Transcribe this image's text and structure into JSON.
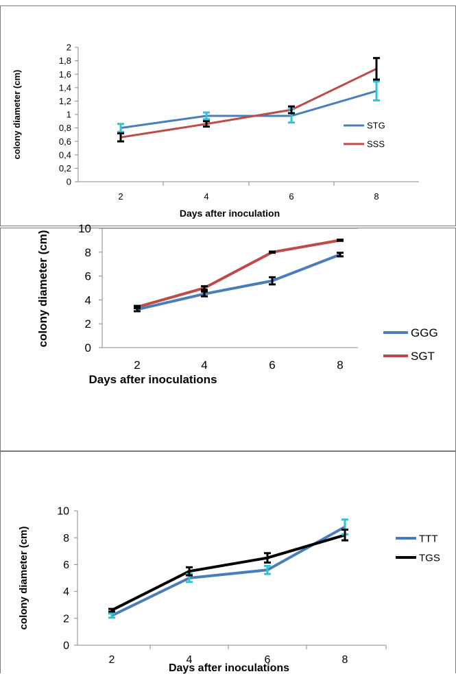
{
  "chart_data": [
    {
      "type": "line",
      "xlabel": "Days after inoculation",
      "ylabel": "colony diameter (cm)",
      "ylim": [
        0,
        2
      ],
      "yticks": [
        "0",
        "0,2",
        "0,4",
        "0,6",
        "0,8",
        "1",
        "1,2",
        "1,4",
        "1,6",
        "1,8",
        "2"
      ],
      "categories": [
        "2",
        "4",
        "6",
        "8"
      ],
      "grid": false,
      "legend_position": "right",
      "series": [
        {
          "name": "STG",
          "color": "#4a7ebb",
          "error_color": "#2fc3d6",
          "values": [
            0.8,
            0.98,
            0.98,
            1.35
          ],
          "errors": [
            0.06,
            0.05,
            0.1,
            0.14
          ]
        },
        {
          "name": "SSS",
          "color": "#be4b48",
          "error_color": "#000000",
          "values": [
            0.66,
            0.86,
            1.07,
            1.68
          ],
          "errors": [
            0.06,
            0.04,
            0.05,
            0.16
          ]
        }
      ]
    },
    {
      "type": "line",
      "xlabel": "Days after inoculations",
      "ylabel": "colony diameter (cm)",
      "ylim": [
        0,
        10
      ],
      "yticks": [
        "0",
        "2",
        "4",
        "6",
        "8",
        "10"
      ],
      "categories": [
        "2",
        "4",
        "6",
        "8"
      ],
      "grid": false,
      "legend_position": "right",
      "series": [
        {
          "name": "GGG",
          "color": "#4a7ebb",
          "error_color": "#000000",
          "values": [
            3.2,
            4.5,
            5.6,
            7.8
          ],
          "errors": [
            0.15,
            0.2,
            0.3,
            0.15
          ]
        },
        {
          "name": "SGT",
          "color": "#be4b48",
          "error_color": "#000000",
          "values": [
            3.4,
            5.0,
            8.0,
            9.0
          ],
          "errors": [
            0.1,
            0.15,
            0.05,
            0.05
          ]
        }
      ]
    },
    {
      "type": "line",
      "xlabel": "Days after inoculations",
      "ylabel": "colony diameter (cm)",
      "ylim": [
        0,
        10
      ],
      "yticks": [
        "0",
        "2",
        "4",
        "6",
        "8",
        "10"
      ],
      "categories": [
        "2",
        "4",
        "6",
        "8"
      ],
      "grid": false,
      "legend_position": "right",
      "series": [
        {
          "name": "TTT",
          "color": "#4a7ebb",
          "error_color": "#2fc3d6",
          "values": [
            2.2,
            5.0,
            5.6,
            8.8
          ],
          "errors": [
            0.15,
            0.3,
            0.3,
            0.55
          ]
        },
        {
          "name": "TGS",
          "color": "#000000",
          "error_color": "#000000",
          "values": [
            2.6,
            5.5,
            6.5,
            8.2
          ],
          "errors": [
            0.1,
            0.3,
            0.35,
            0.4
          ]
        }
      ]
    }
  ]
}
